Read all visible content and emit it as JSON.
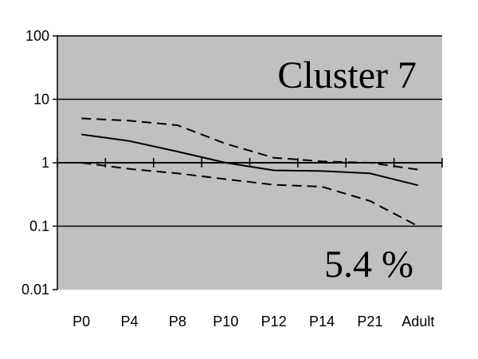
{
  "chart_data": {
    "type": "line",
    "title": "",
    "xlabel": "",
    "ylabel": "",
    "y_scale": "log",
    "ylim": [
      0.01,
      100
    ],
    "y_ticks": [
      {
        "value": 100,
        "label": "100"
      },
      {
        "value": 10,
        "label": "10"
      },
      {
        "value": 1,
        "label": "1"
      },
      {
        "value": 0.1,
        "label": "0.1"
      },
      {
        "value": 0.01,
        "label": "0.01"
      }
    ],
    "categories": [
      "P0",
      "P4",
      "P8",
      "P10",
      "P12",
      "P14",
      "P21",
      "Adult"
    ],
    "grid": true,
    "legend": "none",
    "plot_background": "#c0c0c0",
    "series": [
      {
        "style": "dashed",
        "values": [
          5.0,
          4.6,
          3.9,
          2.0,
          1.2,
          1.05,
          1.0,
          0.78
        ]
      },
      {
        "style": "solid",
        "values": [
          2.8,
          2.2,
          1.5,
          1.0,
          0.76,
          0.74,
          0.68,
          0.44
        ]
      },
      {
        "style": "dashed",
        "values": [
          1.0,
          0.8,
          0.68,
          0.55,
          0.45,
          0.42,
          0.25,
          0.1
        ]
      }
    ],
    "annotations": {
      "title": "Cluster 7",
      "percent": "5.4 %"
    }
  }
}
